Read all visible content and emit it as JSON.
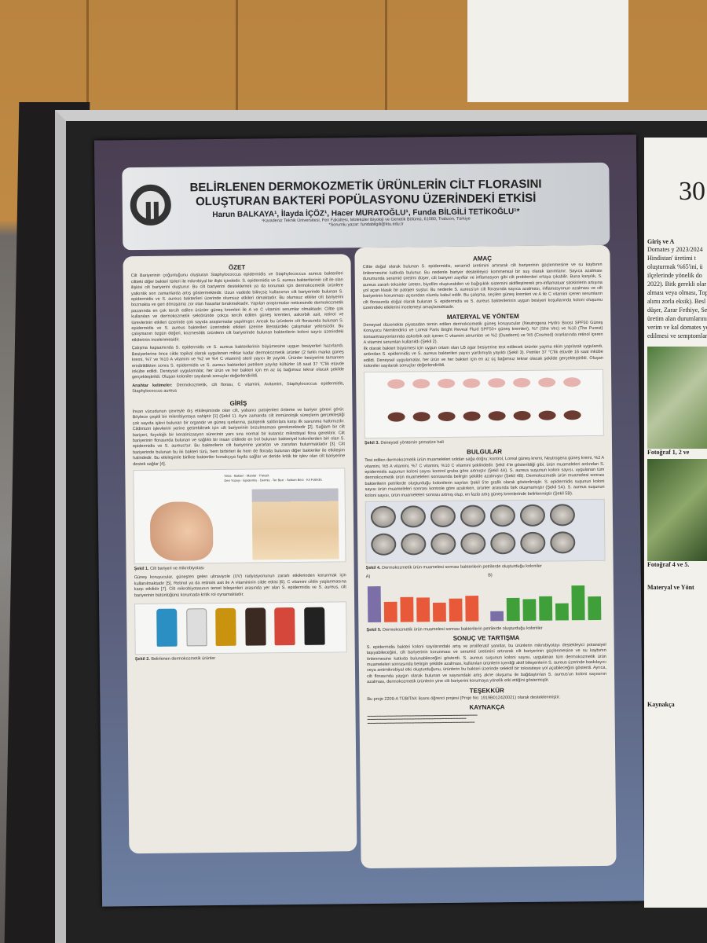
{
  "poster": {
    "title_line1": "BELİRLENEN DERMOKOZMETİK ÜRÜNLERİN CİLT FLORASINI",
    "title_line2": "OLUŞTURAN BAKTERİ POPÜLASYONU ÜZERİNDEKİ ETKİSİ",
    "authors": "Harun BALKAYA¹, İlayda İÇÖZ¹, Hacer MURATOĞLU¹, Funda BİLGİLİ TETİKOĞLU¹*",
    "affiliation": "¹Karadeniz Teknik Üniversitesi, Fen Fakültesi, Moleküler Biyoloji ve Genetik Bölümü, 61080, Trabzon, Türkiye",
    "corresponding": "*Sorumlu yazar: fundabilgili@ktu.edu.tr",
    "sections": {
      "ozet": {
        "heading": "ÖZET",
        "text": "Cilt Bariyerinin çoğunluğunu oluşturan Staphylococcus epidermidis ve Staphylococcus aureus bakterileri ciltteki diğer bakteri türleri ile mikrobiyal bir ilişki içindedir. S. epidermidis ve S. aureus bakterilerinin cilt ile olan ilişkisi cilt bariyerini oluşturur. Bu cilt bariyerini desteklemek ya da korumak için dermokozmetik ürünlere yatkınlık son zamanlarda artış göstermektedir. Uzun vadede bilinçsiz kullanımın cilt bariyerinde bulunan S. epidermidis ve S. aureus bakterileri üzerinde olumsuz etkileri olmaktadır. Bu olumsuz etkiler cilt bariyerini bozmakta ve geri dönüşümü zor olan hasarlar bırakmaktadır. Yapılan araştırmalar neticesinde dermokozmetik pazarında en çok tercih edilen ürünler güneş kremleri ile A ve C vitamini serumlar olmaktadır. Ciltte çok kullanılan ve dermokozmetik sektöründe çokça tercih edilen güneş kremleri, askorbik asit, retinol ve türevlerinin etkileri üzerinde çok sayıda araştırmalar yapılmıştır. Ancak bu ürünlerin cilt florasında bulunan S. epidermidis ve S. aureus bakterileri üzerindeki etkileri üzerine literatürdeki çalışmalar yetersizdir. Bu çalışmanın özgün değeri, kozmesötik ürünlerin cilt bariyerinde bulunan bakterilerin koloni sayısı üzerindeki etkilerinin incelenmesidir.",
        "text2": "Çalışma kapsamında S. epidermidis ve S. aureus bakterilerinin büyümesine uygun besiyerleri hazırlandı. Besiyerlerine önce cilde topikal olarak uygulanan miktar kadar dermokozmetik ürünler (2 farklı marka güneş kremi, %7 ve %10 A vitamini ve %2 ve %4 C vitamini) steril yayıcı ile yayıldı. Ürünler besiyerine tamamen emdirildikten sonra S. epidermidis ve S. aureus bakterileri petrilere yayılıp kültürler 16 saat 37 °C'lik etüvde inkübe edildi. Deneysel uygulamalar, her ürün ve her bakteri için en az üç bağımsız tekrar olacak şekilde gerçekleştirildi. Oluşan koloniler sayılarak sonuçlar değerlendirildi.",
        "keywords_label": "Anahtar kelimeler:",
        "keywords": "Dermokozmetik, cilt florası, C vitamini, Avitamini, Staphylococcus epidermidis, Staphylococcus aureus"
      },
      "giris": {
        "heading": "GİRİŞ",
        "text": "İnsan vücudunun çevreyle dış etkileşiminde olan cilt, yabancı patojenleri önleme ve bariyer görevi görür. Böylece çeşitli bir mikrobiyotaya sahiptir [1] (Şekil 1). Aynı zamanda cilt immünolojik süreçlerin gerçekleştiği çok sayıda işlevi bulunan bir organdır ve güneş ışınlarına, patojenik saldırılara karşı ilk savunma hattımızdır. Cildimizin işlevlerini yerine getirebilmek için cilt bariyerinin bozulmaması gerekmektedir [2]. Sağlam bir cilt bariyeri, fizyolojik bir keratinizasyon sürecinin yanı sıra normal bir kutanöz mikrobiyal flora gerektirir. Cilt bariyerinin florasında bulunan ve sağlıklı bir insan cildinde en bol bulunan bakteriyel kolonilerden biri olan S. epidermidis ve S. aureus'tur. Bu bakterilerin cilt bariyerine yararları ve zararları bulunmaktadır [3]. Cilt bariyerinde bulunan bu iki bakteri türü, hem birbirleri ile hem de florada bulunan diğer bakteriler ile etkileşim halindedir. Bu etkileşimle birlikte bakteriler konakçıya fayda sağlar ve deride kritik bir işlev olan cilt bariyerine destek sağlar [4].",
        "text2": "Güneş koruyucular, güneşten gelen ultraviyole (UV) radyasyonunun zararlı etkilerinden korunmak için kullanılmaktadır [5]. Retinol ya da retinoik asit ile A vitamininin cilde etkisi [6]. C vitamini cildin yaşlanmasına karşı etkilidir [7]. Cilt mikrobiyotasının temel bileşenleri arasında yer alan S. epidermidis ve S. aureus, cilt bariyerinin bütünlüğünü korumada kritik rol oynamaktadır."
      },
      "amac": {
        "heading": "AMAÇ",
        "text": "Ciltte doğal olarak bulunan S. epidermidis, seramid üretimini artırarak cilt bariyerinin güçlenmesine ve su kaybının önlenmesine katkıda bulunur. Bu nedenle bariyer destekleyici kommensal bir suş olarak tanımlanır. Sayıca azalması durumunda seramid üretimi düşer, cilt bariyeri zayıflar ve inflamasyon gibi cilt problemleri ortaya çıkabilir. Buna karşılık, S. aureus zararlı toksinler üreten, biyofilm oluşturabilen ve bağışıklık sistemini aktifleştirerek pro-inflamatuar sitokinlerin artışına yol açan klasik bir patojen suştur. Bu nedenle S. aureus'un cilt florasında sayıca azalması, inflamasyonun azalması ve cilt bariyerinin korunması açısından olumlu kabul edilir. Bu çalışma, seçilen güneş kremleri ve A ile C vitamini içeren serumların cilt florasında doğal olarak bulunan S. epidermidis ve S. aureus bakterilerinin uygun besiyeri koşullarında koloni oluşumu üzerindeki etkilerini incelemeyi amaçlamaktadır."
      },
      "materyal": {
        "heading": "MATERYAL VE YÖNTEM",
        "text": "Deneysel düzenekte piyasadan temin edilen dermokozmetik güneş koruyucular (Neutrogena Hydro Boost SPF50 Güneş Koruyucu Nemlendirici ve Loreal Paris Bright Reveal Fluid SPF50+ güneş kremleri), %7 (She Vec) ve %10 (The Purest) konsantrasyonlarında askorbik asit içeren C vitamini serumları ve %2 (Duaderm) ve %5 (Cosmed) oranlarında retinol içeren A vitamini serumları kullanıldı (Şekil 2).",
        "text2": "İlk olarak bakteri büyümesi için uygun ortam olan LB agar besiyerine test edilecek ürünler yayma ekim yapılarak uygulandı, ardından S. epidermidis ve S. aureus bakterileri yayıcı yardımıyla yayıldı (Şekil 3). Petriler 37 °C'lik etüvde 16 saat inkübe edildi. Deneysel uygulamalar, her ürün ve her bakteri için en az üç bağımsız tekrar olacak şekilde gerçekleştirildi. Oluşan koloniler sayılarak sonuçlar değerlendirildi."
      },
      "bulgular": {
        "heading": "BULGULAR",
        "text": "Test edilen dermokozmetik ürün muameleleri soldan sağa doğru; kontrol, Loreal güneş kremi, Neutrogena güneş kremi, %2 A vitamini, %5 A vitamini, %7 C vitamini, %10 C vitamini şeklindedir. Şekil 4'te gösterildiği gibi, ürün muameleleri ardından S. epidermidis suşunun koloni sayısı kontrol gruba göre artmıştır (Şekil 4A). S. aureus suşunun koloni sayısı, uygulanan tüm dermokozmetik ürün muameleleri sonrasında belirgin şekilde azalmıştır (Şekil 4B). Dermokozmetik ürün muamelesi sonrası bakterilerin petrilerde oluşturduğu kolonilerin sayıları Şekil 5'te grafik olarak gösterilmiştir. S. epidermidis suşunun koloni sayısı ürün muameleleri sonrası kontrole göre azalırken, ürünler arasında fark oluşmamıştır (Şekil 5A). S. aureus suşunun koloni sayısı, ürün muameleleri sonrası artmış olup, en fazla artış güneş kremlerinde belirlenmiştir (Şekil 5B)."
      },
      "sonuc": {
        "heading": "SONUÇ VE TARTIŞMA",
        "text": "S. epidermidis bakteri koloni sayılarındaki artış ve proliferatif yanıtlar, bu ürünlerin mikrobiyotayı destekleyici potansiyel taşıyabileceğini, cilt bariyerinin korunması ve seramid üretimini artırarak cilt bariyerinin güçlenmesine ve su kaybının önlenmesine katkıda bulunabileceğini gösterdi. S. aureus suşunun koloni sayısı, uygulanan tüm dermokozmetik ürün muameleleri sonrasında belirgin şekilde azalması, kullanılan ürünlerin içerdiği aktif bileşenlerin S. aureus üzerinde baskılayıcı veya antimikrobiyal etki oluşturduğunu, ürünlerin bu bakteri üzerinde selektif bir toksisiteye yol açabileceğini gösterdi. Ayrıca, cilt florasında yaygın olarak bulunan ve sayısındaki artış akne oluşumu ile bağdaştırılan S. aureus'un koloni sayısının azalması, dermokozmetik ürünlerin yine cilt bariyerini korumaya yönelik etki ettiğini göstermiştir."
      },
      "tesekkur": {
        "heading": "TEŞEKKÜR",
        "text": "Bu proje 2209-A TÜBİTAK lisans öğrenci projesi (Proje No: 1919B012420021) olarak desteklenmiştir."
      },
      "kaynakca": {
        "heading": "KAYNAKÇA"
      }
    },
    "figures": {
      "sekil1_caption_label": "Şekil 1.",
      "sekil1_caption": "Cilt bariyeri ve mikrobiyotası",
      "sekil1_labels": [
        "Virüs",
        "Bakteri",
        "Mantar",
        "Parazit",
        "Deri Yüzeyi",
        "Epidermis",
        "Dermis",
        "Ter Bezi",
        "Sebum Bezi",
        "Kıl Folikülü"
      ],
      "sekil2_caption_label": "Şekil 2.",
      "sekil2_caption": "Belirlenen dermokozmetik ürünler",
      "sekil3_caption_label": "Şekil 3.",
      "sekil3_caption": "Deneysel yöntemin şematize hali",
      "sekil4_caption_label": "Şekil 4.",
      "sekil4_caption": "Dermokozmetik ürün muamelesi sonrası bakterilerin petrilerde oluşturduğu koloniler",
      "sekil5_caption_label": "Şekil 5.",
      "sekil5_caption": "Dermokozmetik ürün muamelesi sonrası bakterilerin petrilerde oluşturduğu koloniler",
      "panel_a": "A)",
      "panel_b": "B)",
      "bar_colors": {
        "control": "#7b6fa8",
        "a": "#e8593a",
        "b": "#3fa03a"
      },
      "chart_a_values": [
        110,
        62,
        76,
        74,
        58,
        70,
        78
      ],
      "chart_b_values": [
        30,
        70,
        66,
        74,
        52,
        106,
        72
      ]
    }
  },
  "right_poster": {
    "number": "30",
    "heading": "Giriş ve A",
    "text": "Domates y 2023/2024 Hindistan' üretimi t oluşturmak %65'ini, ü ilçelerinde yönelik do 2022). Bitk gerekli olar alması veya olması, Top alımı zorla eksik). Besl düşer, Zarar Fethiye, Se üretim alan durumlarını verim ve kal domates yet edilmesi ve semptomları",
    "photo_caption1": "Fotoğraf 1, 2 ve",
    "photo_caption2": "Fotoğraf 4 ve 5.",
    "heading2": "Materyal ve Yönt",
    "heading3": "Kaynakça"
  }
}
